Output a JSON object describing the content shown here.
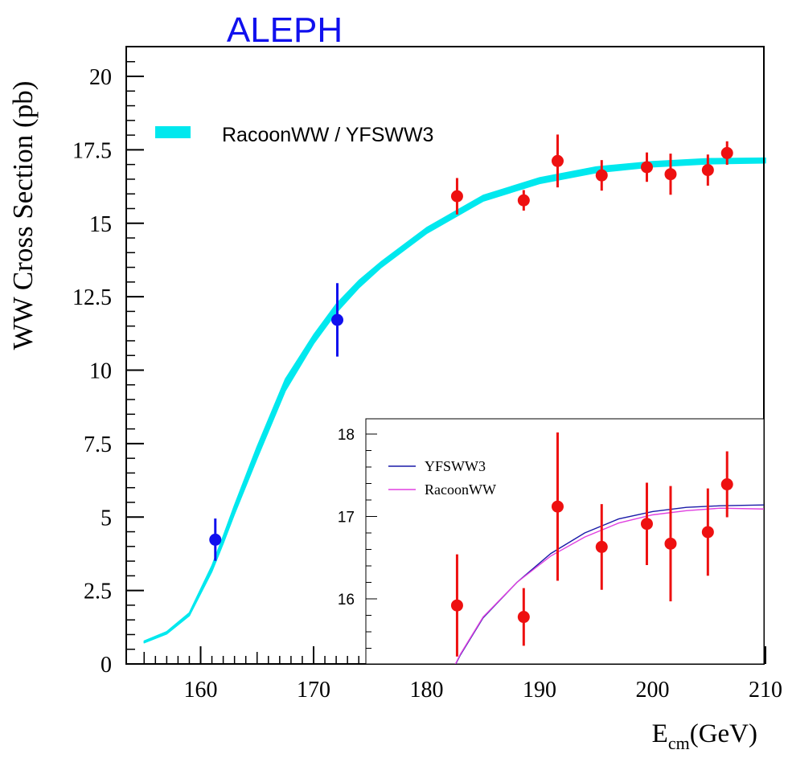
{
  "header": {
    "title": "ALEPH",
    "title_color": "#1010ee"
  },
  "chart_data": [
    {
      "type": "line",
      "title": "ALEPH",
      "xlabel_main": "E",
      "xlabel_sub": "cm",
      "xlabel_unit": "(GeV)",
      "ylabel": "WW Cross Section (pb)",
      "xlim": [
        154,
        210
      ],
      "ylim": [
        0,
        21
      ],
      "x_ticks": [
        160,
        170,
        180,
        190,
        200,
        210
      ],
      "x_tick_labels": [
        "160",
        "170",
        "180",
        "190",
        "200",
        "210"
      ],
      "y_ticks": [
        0,
        2.5,
        5,
        7.5,
        10,
        12.5,
        15,
        17.5,
        20
      ],
      "y_tick_labels": [
        "0",
        "2.5",
        "5",
        "7.5",
        "10",
        "12.5",
        "15",
        "17.5",
        "20"
      ],
      "legend": {
        "label": "RacoonWW / YFSWW3",
        "color": "#00e8ee",
        "placement": "top-left"
      },
      "series": [
        {
          "name": "RacoonWW / YFSWW3",
          "kind": "band",
          "color": "#00e8ee",
          "x": [
            155,
            157,
            159,
            161,
            162,
            163,
            165,
            167.5,
            170,
            172,
            174,
            176,
            180,
            185,
            190,
            195,
            200,
            205,
            210
          ],
          "low": [
            0.72,
            1.02,
            1.64,
            3.15,
            4.1,
            5.1,
            7.0,
            9.3,
            10.9,
            11.95,
            12.8,
            13.5,
            14.65,
            15.75,
            16.35,
            16.72,
            16.92,
            17.02,
            17.05
          ],
          "high": [
            0.78,
            1.1,
            1.74,
            3.35,
            4.35,
            5.4,
            7.4,
            9.7,
            11.2,
            12.25,
            13.05,
            13.7,
            14.85,
            15.95,
            16.55,
            16.92,
            17.1,
            17.2,
            17.22
          ]
        },
        {
          "name": "",
          "kind": "points",
          "points": [
            {
              "x": 161.3,
              "y": 4.23,
              "err": 0.72,
              "color": "#1010ee"
            },
            {
              "x": 172.1,
              "y": 11.71,
              "err": 1.25,
              "color": "#1010ee"
            },
            {
              "x": 182.7,
              "y": 15.92,
              "err": 0.62,
              "color": "#ee1010"
            },
            {
              "x": 188.6,
              "y": 15.78,
              "err": 0.35,
              "color": "#ee1010"
            },
            {
              "x": 191.6,
              "y": 17.12,
              "err": 0.9,
              "color": "#ee1010"
            },
            {
              "x": 195.5,
              "y": 16.63,
              "err": 0.52,
              "color": "#ee1010"
            },
            {
              "x": 199.5,
              "y": 16.91,
              "err": 0.5,
              "color": "#ee1010"
            },
            {
              "x": 201.6,
              "y": 16.67,
              "err": 0.7,
              "color": "#ee1010"
            },
            {
              "x": 204.9,
              "y": 16.81,
              "err": 0.53,
              "color": "#ee1010"
            },
            {
              "x": 206.6,
              "y": 17.39,
              "err": 0.4,
              "color": "#ee1010"
            }
          ]
        }
      ]
    },
    {
      "type": "line",
      "title": "",
      "xlabel": "",
      "ylabel": "",
      "xlim": [
        175,
        210
      ],
      "ylim": [
        15,
        18.2
      ],
      "y_ticks": [
        16,
        17,
        18
      ],
      "y_tick_labels": [
        "16",
        "17",
        "18"
      ],
      "legend_placement": "top-left",
      "series": [
        {
          "name": "YFSWW3",
          "color": "#1a1aa8",
          "x": [
            181.8,
            183,
            185,
            188,
            191,
            194,
            197,
            200,
            203,
            206,
            210
          ],
          "y": [
            15.0,
            15.32,
            15.77,
            16.2,
            16.55,
            16.8,
            16.97,
            17.06,
            17.11,
            17.13,
            17.14
          ]
        },
        {
          "name": "RacoonWW",
          "color": "#e040e0",
          "x": [
            181.8,
            183,
            185,
            188,
            191,
            194,
            197,
            200,
            203,
            206,
            210
          ],
          "y": [
            15.0,
            15.33,
            15.78,
            16.2,
            16.52,
            16.75,
            16.92,
            17.02,
            17.07,
            17.1,
            17.09
          ]
        },
        {
          "name": "",
          "kind": "points",
          "color": "#ee1010",
          "points": [
            {
              "x": 182.7,
              "y": 15.92,
              "err": 0.62
            },
            {
              "x": 188.6,
              "y": 15.78,
              "err": 0.35
            },
            {
              "x": 191.6,
              "y": 17.12,
              "err": 0.9
            },
            {
              "x": 195.5,
              "y": 16.63,
              "err": 0.52
            },
            {
              "x": 199.5,
              "y": 16.91,
              "err": 0.5
            },
            {
              "x": 201.6,
              "y": 16.67,
              "err": 0.7
            },
            {
              "x": 204.9,
              "y": 16.81,
              "err": 0.53
            },
            {
              "x": 206.6,
              "y": 17.39,
              "err": 0.4
            }
          ]
        }
      ]
    }
  ]
}
